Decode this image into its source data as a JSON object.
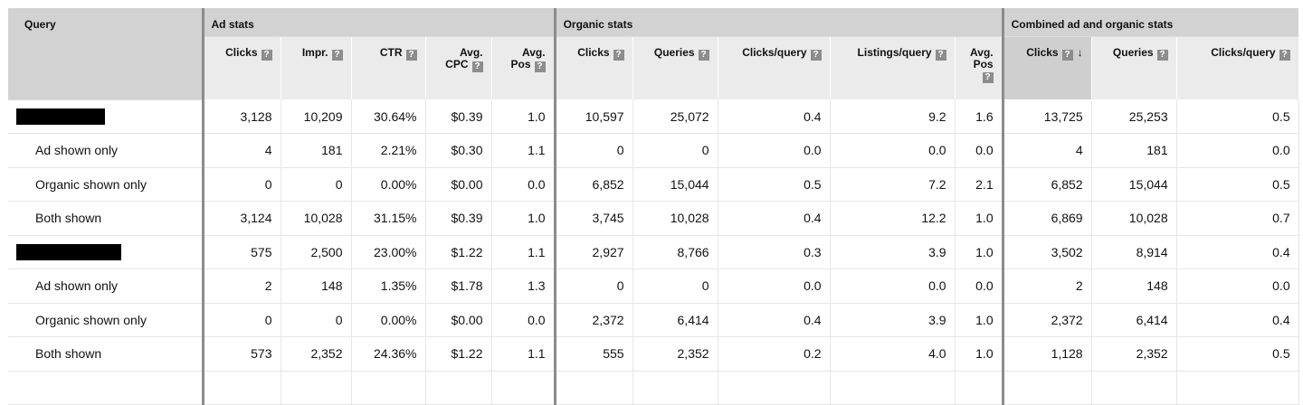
{
  "header": {
    "query_label": "Query",
    "groups": [
      "Ad stats",
      "Organic stats",
      "Combined ad and organic stats"
    ],
    "help_glyph": "?",
    "sort_arrow": "↓",
    "columns": [
      [
        "Clicks"
      ],
      [
        "Impr."
      ],
      [
        "CTR"
      ],
      [
        "Avg.",
        "CPC"
      ],
      [
        "Avg.",
        "Pos"
      ],
      [
        "Clicks"
      ],
      [
        "Queries"
      ],
      [
        "Clicks/query"
      ],
      [
        "Listings/query"
      ],
      [
        "Avg.",
        "Pos"
      ],
      [
        "Clicks"
      ],
      [
        "Queries"
      ],
      [
        "Clicks/query"
      ]
    ]
  },
  "rows": [
    {
      "label": "",
      "redacted": true,
      "cells": [
        "3,128",
        "10,209",
        "30.64%",
        "$0.39",
        "1.0",
        "10,597",
        "25,072",
        "0.4",
        "9.2",
        "1.6",
        "13,725",
        "25,253",
        "0.5"
      ]
    },
    {
      "label": "Ad shown only",
      "cells": [
        "4",
        "181",
        "2.21%",
        "$0.30",
        "1.1",
        "0",
        "0",
        "0.0",
        "0.0",
        "0.0",
        "4",
        "181",
        "0.0"
      ]
    },
    {
      "label": "Organic shown only",
      "cells": [
        "0",
        "0",
        "0.00%",
        "$0.00",
        "0.0",
        "6,852",
        "15,044",
        "0.5",
        "7.2",
        "2.1",
        "6,852",
        "15,044",
        "0.5"
      ]
    },
    {
      "label": "Both shown",
      "cells": [
        "3,124",
        "10,028",
        "31.15%",
        "$0.39",
        "1.0",
        "3,745",
        "10,028",
        "0.4",
        "12.2",
        "1.0",
        "6,869",
        "10,028",
        "0.7"
      ]
    },
    {
      "label": "",
      "redacted": true,
      "cells": [
        "575",
        "2,500",
        "23.00%",
        "$1.22",
        "1.1",
        "2,927",
        "8,766",
        "0.3",
        "3.9",
        "1.0",
        "3,502",
        "8,914",
        "0.4"
      ]
    },
    {
      "label": "Ad shown only",
      "cells": [
        "2",
        "148",
        "1.35%",
        "$1.78",
        "1.3",
        "0",
        "0",
        "0.0",
        "0.0",
        "0.0",
        "2",
        "148",
        "0.0"
      ]
    },
    {
      "label": "Organic shown only",
      "cells": [
        "0",
        "0",
        "0.00%",
        "$0.00",
        "0.0",
        "2,372",
        "6,414",
        "0.4",
        "3.9",
        "1.0",
        "2,372",
        "6,414",
        "0.4"
      ]
    },
    {
      "label": "Both shown",
      "cells": [
        "573",
        "2,352",
        "24.36%",
        "$1.22",
        "1.1",
        "555",
        "2,352",
        "0.2",
        "4.0",
        "1.0",
        "1,128",
        "2,352",
        "0.5"
      ]
    },
    {
      "label": "",
      "cells": [
        "",
        "",
        "",
        "",
        "",
        "",
        "",
        "",
        "",
        "",
        "",
        "",
        ""
      ]
    }
  ]
}
